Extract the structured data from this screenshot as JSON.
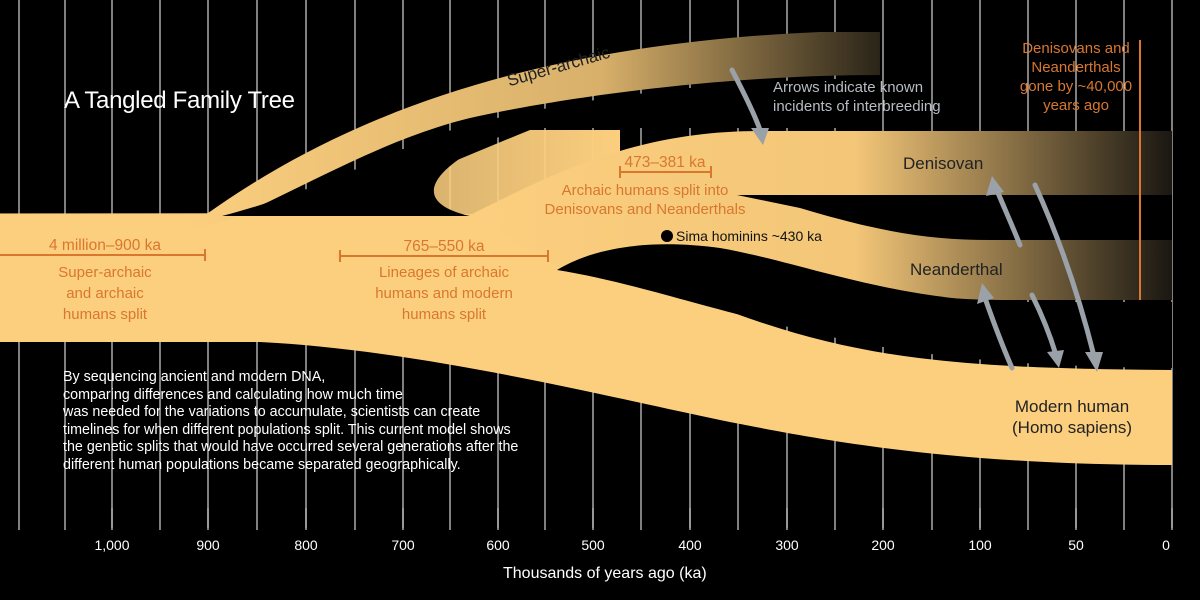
{
  "title": "A Tangled Family Tree",
  "colors": {
    "background": "#000000",
    "band": "#fccf7f",
    "label_orange": "#d9772f",
    "arrow_grey": "#9aa1a9"
  },
  "branches": {
    "super_archaic": "Super-archaic",
    "denisovan": "Denisovan",
    "neanderthal": "Neanderthal",
    "modern_human": [
      "Modern human",
      "(Homo sapiens)"
    ]
  },
  "splits": [
    {
      "range": "4 million–900 ka",
      "caption": [
        "Super-archaic",
        "and archaic",
        "humans split"
      ]
    },
    {
      "range": "765–550 ka",
      "caption": [
        "Lineages of archaic",
        "humans and modern",
        "humans split"
      ]
    },
    {
      "range": "473–381 ka",
      "caption": [
        "Archaic humans split into",
        "Denisovans and Neanderthals"
      ]
    }
  ],
  "sima_label": "Sima hominins ~430 ka",
  "arrows_note": [
    "Arrows indicate known",
    "incidents of interbreeding"
  ],
  "extinction_note": [
    "Denisovans and",
    "Neanderthals",
    "gone by ~40,000",
    "years ago"
  ],
  "description": [
    "By sequencing ancient and modern DNA,",
    "comparing differences and calculating how much time",
    "was needed for the variations to accumulate, scientists can create",
    "timelines for when different populations split. This current model shows",
    "the genetic splits that would have occurred several generations after the",
    "different human populations became separated geographically."
  ],
  "axis": {
    "title": "Thousands of years ago (ka)",
    "ticks": [
      "1,000",
      "900",
      "800",
      "700",
      "600",
      "500",
      "400",
      "300",
      "200",
      "100",
      "50",
      "0"
    ]
  }
}
